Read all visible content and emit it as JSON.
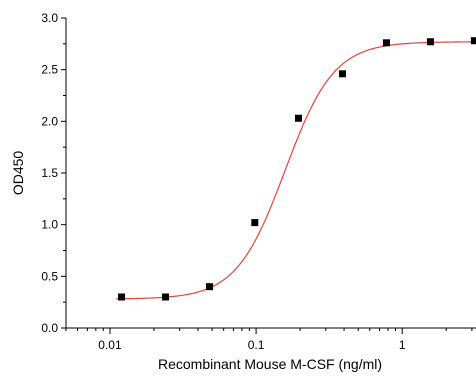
{
  "chart_data": {
    "type": "scatter",
    "xlabel": "Recombinant Mouse M-CSF (ng/ml)",
    "ylabel": "OD450",
    "x_scale": "log",
    "xlim": [
      0.005,
      3.2
    ],
    "ylim": [
      0,
      3.0
    ],
    "x_ticks": [
      {
        "value": 0.01,
        "label": "0.01"
      },
      {
        "value": 0.1,
        "label": "0.1"
      },
      {
        "value": 1,
        "label": "1"
      }
    ],
    "y_ticks": [
      {
        "value": 0.0,
        "label": "0.0"
      },
      {
        "value": 0.5,
        "label": "0.5"
      },
      {
        "value": 1.0,
        "label": "1.0"
      },
      {
        "value": 1.5,
        "label": "1.5"
      },
      {
        "value": 2.0,
        "label": "2.0"
      },
      {
        "value": 2.5,
        "label": "2.5"
      },
      {
        "value": 3.0,
        "label": "3.0"
      }
    ],
    "grid": false,
    "points": {
      "x": [
        0.012,
        0.024,
        0.048,
        0.098,
        0.195,
        0.39,
        0.78,
        1.56,
        3.12
      ],
      "y": [
        0.3,
        0.3,
        0.4,
        1.02,
        2.03,
        2.46,
        2.76,
        2.77,
        2.78
      ],
      "color": "#000000"
    },
    "fit_curve": {
      "model": "4PL",
      "bottom": 0.28,
      "top": 2.77,
      "ec50": 0.158,
      "hill": 2.6,
      "color": "#e0463c"
    }
  }
}
